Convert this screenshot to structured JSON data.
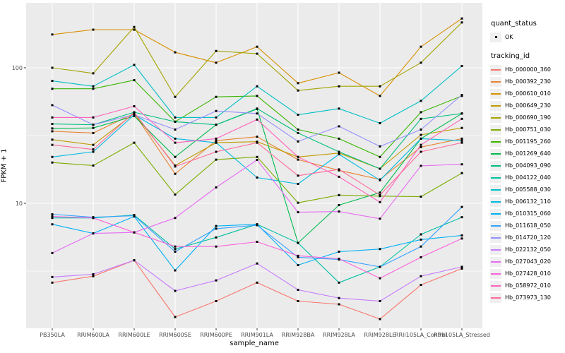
{
  "chart_data": {
    "type": "line",
    "title": "",
    "xlabel": "sample_name",
    "ylabel": "FPKM + 1",
    "y_scale": "log10",
    "ylim": [
      1.15,
      300
    ],
    "y_ticks": [
      100,
      10
    ],
    "y_minor_gridlines": [
      31.6,
      3.16
    ],
    "grid": "on",
    "legend_position": "right",
    "point_marker": {
      "shape": "square",
      "color": "#000000",
      "meaning": "quant_status OK"
    },
    "categories": [
      "PB350LA",
      "RRIM600LA",
      "RRIM600LE",
      "RRIM600SE",
      "RRIM600PE",
      "RRIM901LA",
      "RRIM928BA",
      "RRIM928LA",
      "RRIM928LE",
      "RRII105LA_Control",
      "RRII105LA_Stressed"
    ],
    "series": [
      {
        "name": "Hb_000000_360",
        "color": "#F8766D",
        "values": [
          2.6,
          2.9,
          3.8,
          1.45,
          1.9,
          2.6,
          1.9,
          1.8,
          1.4,
          2.5,
          3.3
        ]
      },
      {
        "name": "Hb_000392_230",
        "color": "#EA8331",
        "values": [
          34,
          33,
          46,
          16.5,
          29,
          31,
          21,
          17.5,
          15,
          26,
          30
        ]
      },
      {
        "name": "Hb_000610_010",
        "color": "#D89000",
        "values": [
          176,
          191,
          191,
          130,
          109,
          143,
          77,
          92,
          62,
          143,
          231
        ]
      },
      {
        "name": "Hb_000649_230",
        "color": "#C09B00",
        "values": [
          29.5,
          27,
          46,
          19,
          28,
          28.5,
          22,
          23.5,
          18,
          32,
          36
        ]
      },
      {
        "name": "Hb_000690_190",
        "color": "#A3A500",
        "values": [
          100,
          91,
          200,
          61,
          133,
          127,
          68,
          73,
          73,
          109,
          216
        ]
      },
      {
        "name": "Hb_000751_030",
        "color": "#7CAE00",
        "values": [
          20,
          19,
          28,
          11.6,
          21,
          22,
          10.1,
          11.5,
          11.3,
          11.2,
          16.7
        ]
      },
      {
        "name": "Hb_001195_260",
        "color": "#39B600",
        "values": [
          70,
          70,
          81,
          40,
          61,
          62,
          35,
          30,
          22,
          47,
          62
        ]
      },
      {
        "name": "Hb_001269_640",
        "color": "#00BB4E",
        "values": [
          35.7,
          36,
          44,
          22,
          38,
          49.7,
          5.1,
          9.7,
          12,
          30,
          46
        ]
      },
      {
        "name": "Hb_004093_090",
        "color": "#00BF7D",
        "values": [
          38.5,
          38,
          47,
          40,
          38,
          50,
          33,
          24,
          18,
          42,
          46
        ]
      },
      {
        "name": "Hb_004122_040",
        "color": "#00C1A3",
        "values": [
          7.8,
          7.8,
          8.2,
          4.6,
          5.6,
          7.0,
          5.1,
          2.6,
          3.4,
          5.9,
          7.9
        ]
      },
      {
        "name": "Hb_005588_030",
        "color": "#00BFC4",
        "values": [
          80,
          73,
          105,
          43,
          43,
          73,
          45,
          50,
          39,
          57,
          103
        ]
      },
      {
        "name": "Hb_006132_110",
        "color": "#00BAE0",
        "values": [
          22,
          24,
          45,
          30,
          28,
          15.5,
          13.9,
          23,
          14.8,
          30,
          29
        ]
      },
      {
        "name": "Hb_010315_060",
        "color": "#00B0F6",
        "values": [
          7.0,
          6.0,
          8.0,
          3.2,
          6.8,
          7.0,
          3.5,
          4.4,
          4.6,
          5.4,
          5.8
        ]
      },
      {
        "name": "Hb_011618_050",
        "color": "#35A2FF",
        "values": [
          8.3,
          7.9,
          8.1,
          4.4,
          6.5,
          6.9,
          4.0,
          3.85,
          3.4,
          4.8,
          9.4
        ]
      },
      {
        "name": "Hb_014720_120",
        "color": "#9590FF",
        "values": [
          53,
          38,
          45,
          35,
          48,
          46,
          28.6,
          37,
          26.3,
          35,
          63
        ]
      },
      {
        "name": "Hb_022132_050",
        "color": "#C77CFF",
        "values": [
          2.86,
          3.0,
          3.8,
          2.26,
          2.7,
          3.6,
          2.3,
          2.0,
          1.9,
          2.9,
          3.4
        ]
      },
      {
        "name": "Hb_027043_020",
        "color": "#E76BF3",
        "values": [
          4.3,
          6.0,
          6.1,
          7.8,
          13.1,
          20.9,
          8.6,
          8.7,
          7.7,
          18.9,
          19.4
        ]
      },
      {
        "name": "Hb_027428_010",
        "color": "#FA62DB",
        "values": [
          8.0,
          7.8,
          6.1,
          4.8,
          4.8,
          5.2,
          4.1,
          3.9,
          2.8,
          4.0,
          5.5
        ]
      },
      {
        "name": "Hb_058972_010",
        "color": "#FF62BC",
        "values": [
          43,
          43,
          52,
          28,
          30,
          41.5,
          22,
          15.7,
          10.2,
          27,
          42
        ]
      },
      {
        "name": "Hb_073973_130",
        "color": "#FF6A98",
        "values": [
          27,
          25,
          47,
          18.7,
          24,
          28,
          16,
          17.8,
          11.5,
          24,
          28
        ]
      }
    ]
  },
  "legend": {
    "quant_status_title": "quant_status",
    "quant_status_items": [
      {
        "label": "OK",
        "marker": "black-point"
      }
    ],
    "tracking_id_title": "tracking_id"
  },
  "colors": {
    "panel_background": "#EBEBEB",
    "gridline": "#FFFFFF",
    "axis_text": "#4D4D4D",
    "tick_mark": "#333333",
    "legend_key_background": "#EFEFEF",
    "point": "#000000"
  }
}
